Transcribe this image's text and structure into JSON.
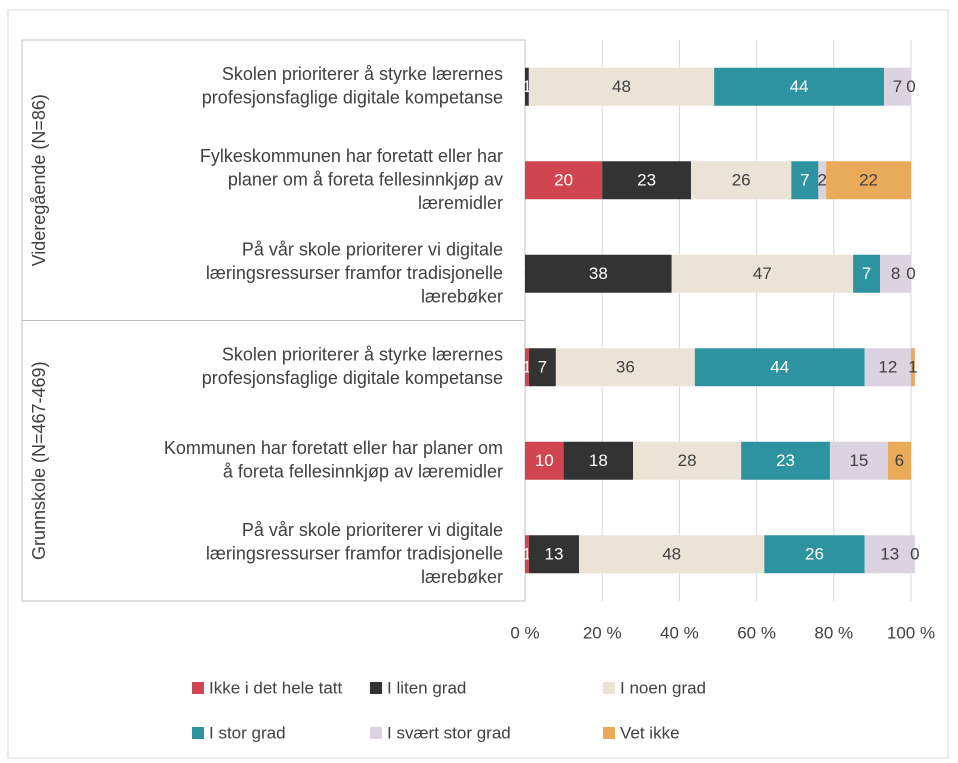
{
  "chart_data": {
    "type": "stacked-bar-horizontal-percent",
    "groups": [
      {
        "name": "Videregående (N=86)",
        "categories": [
          [
            "Skolen prioriterer å styrke lærernes",
            "profesjonsfaglige digitale kompetanse"
          ],
          [
            "Fylkeskommunen har foretatt eller har",
            "planer om å foreta fellesinnkjøp av",
            "læremidler"
          ],
          [
            "På vår skole prioriterer vi digitale",
            "læringsressurser framfor tradisjonelle",
            "lærebøker"
          ]
        ]
      },
      {
        "name": "Grunnskole (N=467-469)",
        "categories": [
          [
            "Skolen prioriterer å styrke lærernes",
            "profesjonsfaglige digitale kompetanse"
          ],
          [
            "Kommunen har foretatt eller har planer om",
            "å foreta fellesinnkjøp av læremidler"
          ],
          [
            "På vår skole prioriterer vi digitale",
            "læringsressurser framfor tradisjonelle",
            "lærebøker"
          ]
        ]
      }
    ],
    "series": [
      {
        "name": "Ikke i det hele tatt",
        "color": "#d0454f",
        "values": [
          0,
          20,
          0,
          1,
          10,
          1
        ],
        "value_labels": [
          null,
          "20",
          "0",
          "1",
          "10",
          "1"
        ]
      },
      {
        "name": "I liten grad",
        "color": "#333333",
        "values": [
          1,
          23,
          38,
          7,
          18,
          13
        ]
      },
      {
        "name": "I noen grad",
        "color": "#ebe3d6",
        "values": [
          48,
          26,
          47,
          36,
          28,
          48
        ]
      },
      {
        "name": "I stor grad",
        "color": "#2e93a0",
        "values": [
          44,
          7,
          7,
          44,
          23,
          26
        ]
      },
      {
        "name": "I svært stor grad",
        "color": "#dcd3e0",
        "values": [
          7,
          2,
          8,
          12,
          15,
          13
        ]
      },
      {
        "name": "Vet ikke",
        "color": "#e9aa5a",
        "values": [
          0,
          22,
          0,
          1,
          6,
          0
        ]
      }
    ],
    "xlim": [
      0,
      100
    ],
    "xticks": [
      {
        "value": 0,
        "label": "0 %"
      },
      {
        "value": 20,
        "label": "20 %"
      },
      {
        "value": 40,
        "label": "40 %"
      },
      {
        "value": 60,
        "label": "60 %"
      },
      {
        "value": 80,
        "label": "80 %"
      },
      {
        "value": 100,
        "label": "100 %"
      }
    ],
    "grid": true
  }
}
